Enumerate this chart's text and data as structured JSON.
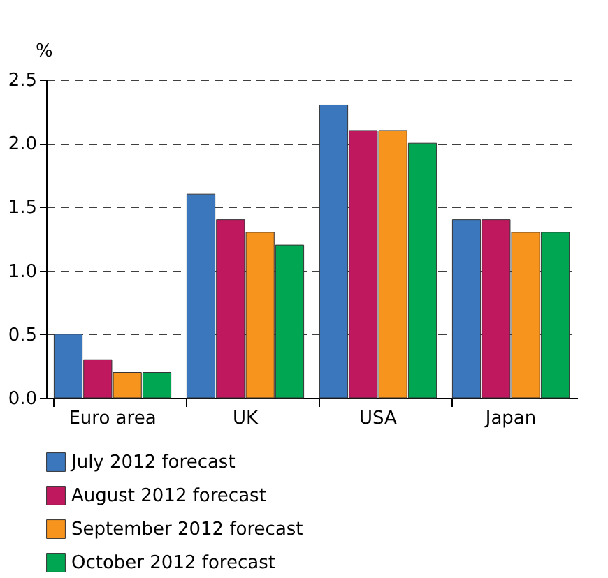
{
  "chart_data": {
    "type": "bar",
    "ylabel": "%",
    "categories": [
      "Euro area",
      "UK",
      "USA",
      "Japan"
    ],
    "series": [
      {
        "name": "July 2012 forecast",
        "color": "#3b77bd",
        "values": [
          0.5,
          1.6,
          2.3,
          1.4
        ]
      },
      {
        "name": "August 2012 forecast",
        "color": "#c0185e",
        "values": [
          0.3,
          1.4,
          2.1,
          1.4
        ]
      },
      {
        "name": "September 2012 forecast",
        "color": "#f7941e",
        "values": [
          0.2,
          1.3,
          2.1,
          1.3
        ]
      },
      {
        "name": "October 2012 forecast",
        "color": "#00a651",
        "values": [
          0.2,
          1.2,
          2.0,
          1.3
        ]
      }
    ],
    "ylim": [
      0,
      2.5
    ],
    "yticks": [
      {
        "value": 0,
        "label": "0.0"
      },
      0.5,
      {
        "value": 1,
        "label": "1.0"
      },
      1.5,
      {
        "value": 2,
        "label": "2.0"
      },
      2.5
    ],
    "grid": "y",
    "legend": "bottom"
  }
}
